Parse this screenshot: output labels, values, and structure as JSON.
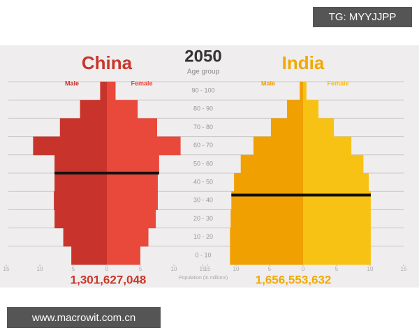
{
  "header": {
    "year": "2050",
    "age_axis_label": "Age group",
    "x_axis_label": "Population (in millions)"
  },
  "age_groups": [
    "0 - 10",
    "10 - 20",
    "20 - 30",
    "30 - 40",
    "40 - 50",
    "50 - 60",
    "60 - 70",
    "70 - 80",
    "80 - 90",
    "90 - 100"
  ],
  "chart_data": [
    {
      "type": "pyramid",
      "title": "China",
      "total": "1,301,627,048",
      "title_color": "#c8362c",
      "series": [
        {
          "name": "Male",
          "color": "#c8342b",
          "values": [
            5.3,
            6.5,
            7.8,
            7.9,
            7.8,
            7.8,
            11,
            7,
            4,
            1
          ]
        },
        {
          "name": "Female",
          "color": "#e8493b",
          "values": [
            5.0,
            6.2,
            7.3,
            7.6,
            7.6,
            7.8,
            11,
            7.5,
            4.6,
            1.3
          ]
        }
      ],
      "xlim": [
        -15,
        15
      ],
      "xticks": [
        {
          "value": -15,
          "label": "15"
        },
        {
          "value": -10,
          "label": "10"
        },
        {
          "value": -5,
          "label": "5"
        },
        0,
        5,
        10,
        15
      ],
      "median_age": 50
    },
    {
      "type": "pyramid",
      "title": "India",
      "total": "1,656,553,632",
      "title_color": "#f0aa00",
      "series": [
        {
          "name": "Male",
          "color": "#f0a000",
          "values": [
            10.9,
            10.9,
            10.8,
            10.7,
            10.3,
            9.3,
            7.4,
            4.8,
            2.4,
            0.5
          ]
        },
        {
          "name": "Female",
          "color": "#f8c214",
          "values": [
            10.1,
            10.1,
            10.1,
            10.1,
            9.8,
            9.0,
            7.2,
            4.6,
            2.3,
            0.5
          ]
        }
      ],
      "xlim": [
        -15,
        15
      ],
      "xticks": [
        {
          "value": -15,
          "label": "15"
        },
        {
          "value": -10,
          "label": "10"
        },
        {
          "value": -5,
          "label": "5"
        },
        0,
        5,
        10,
        15
      ],
      "median_age": 38
    }
  ],
  "watermarks": [
    "TG: MYYJJPP",
    "www.macrowit.com.cn"
  ]
}
